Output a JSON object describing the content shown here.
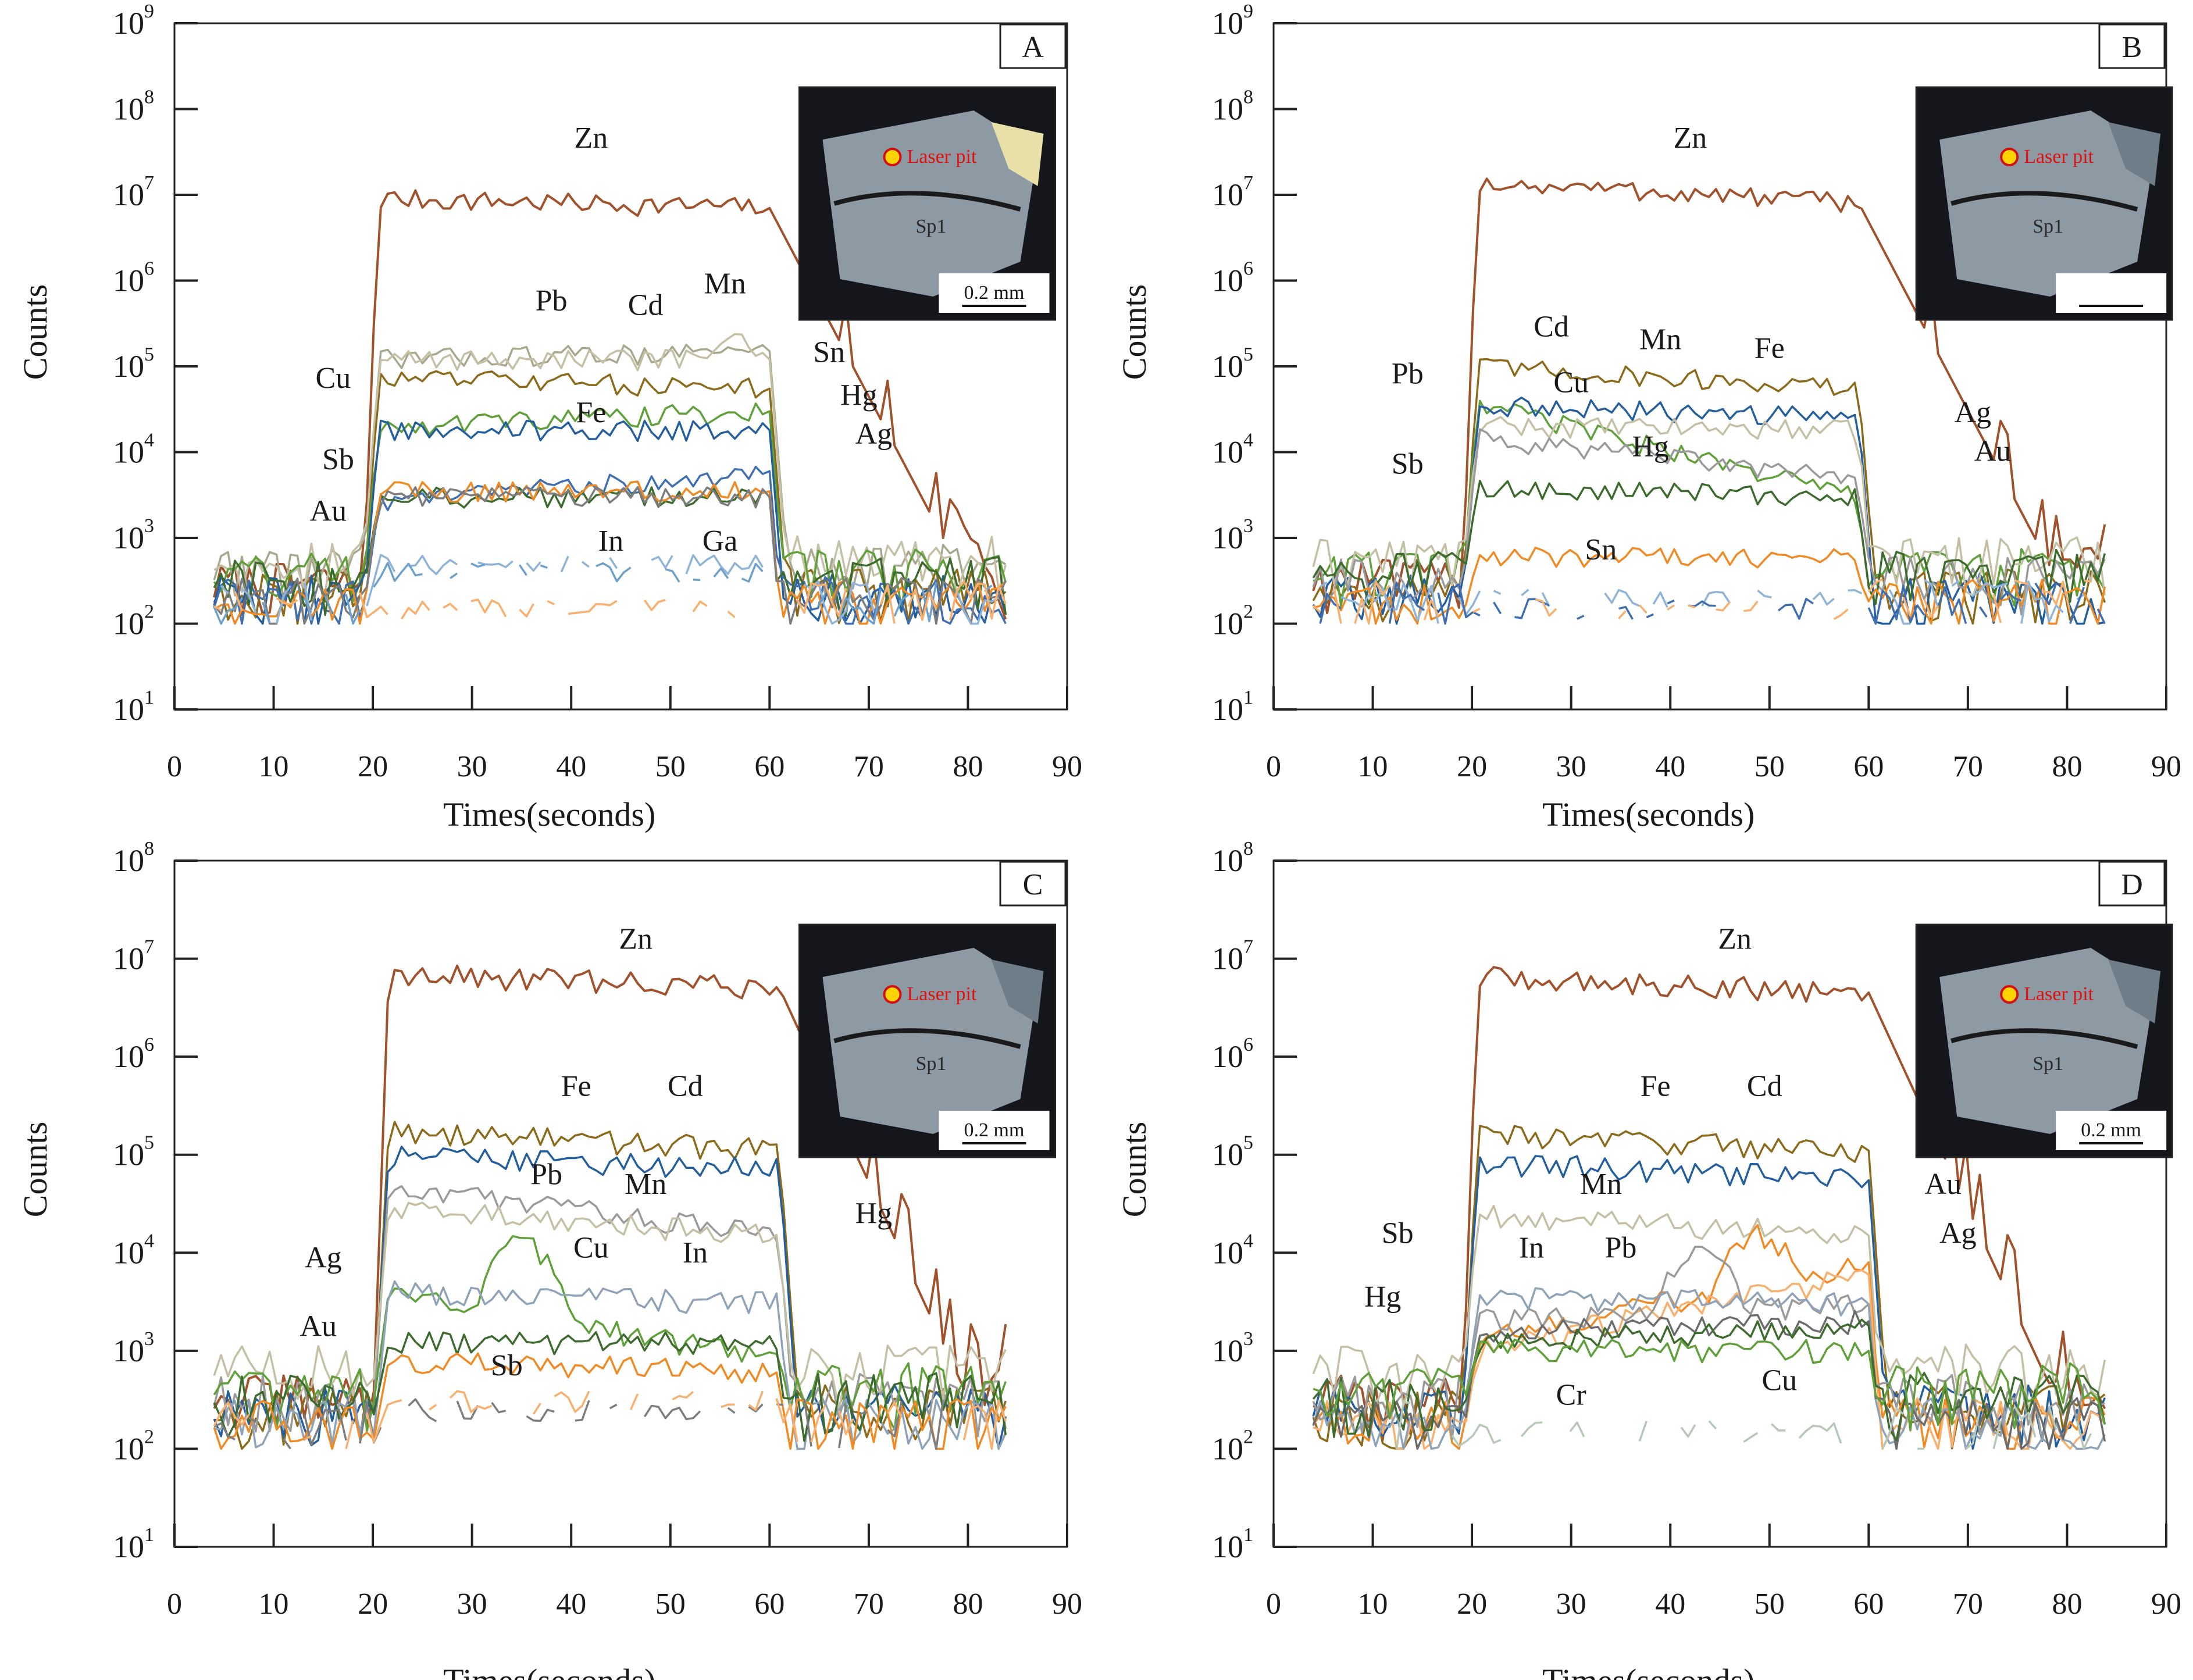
{
  "figure": {
    "y_label": "Counts",
    "x_label": "Times(seconds)"
  },
  "chart_data": [
    {
      "type": "line",
      "panel": "A",
      "xlabel": "Times(seconds)",
      "ylabel": "Counts",
      "y_scale": "log",
      "xlim": [
        0,
        90
      ],
      "x_ticks": [
        0,
        10,
        20,
        30,
        40,
        50,
        60,
        70,
        80,
        90
      ],
      "ylim_exp": [
        1,
        9
      ],
      "y_tick_exps": [
        1,
        2,
        3,
        4,
        5,
        6,
        7,
        8,
        9
      ],
      "signal": [
        19,
        60
      ],
      "series": [
        {
          "name": "Zn",
          "color": "#a0522d",
          "plateau": 9000000,
          "end": 7000000,
          "bg": 180,
          "tail": "slow"
        },
        {
          "name": "Pb",
          "color": "#a8a88e",
          "plateau": 120000,
          "end": 150000,
          "bg": 280,
          "tail": "fast"
        },
        {
          "name": "Cd",
          "color": "#8b6a1c",
          "plateau": 75000,
          "end": 55000,
          "bg": 150,
          "tail": "fast"
        },
        {
          "name": "Mn",
          "color": "#c4c0a6",
          "plateau": 120000,
          "end": 120000,
          "bg": 350,
          "tail": "fast",
          "bump": [
            56,
            200000
          ]
        },
        {
          "name": "Cu",
          "color": "#5fa03a",
          "plateau": 20000,
          "end": 30000,
          "bg": 250,
          "tail": "fast"
        },
        {
          "name": "Fe",
          "color": "#245e9c",
          "plateau": 18000,
          "end": 18000,
          "bg": 130,
          "tail": "fast"
        },
        {
          "name": "Sn",
          "color": "#3f6fb0",
          "plateau": 2500,
          "end": 6000,
          "bg": 120,
          "tail": "fast"
        },
        {
          "name": "Hg",
          "color": "#3d6b2e",
          "plateau": 3000,
          "end": 3000,
          "bg": 200,
          "tail": "fast"
        },
        {
          "name": "Ag",
          "color": "#f08a24",
          "plateau": 3500,
          "end": 3500,
          "bg": 110,
          "tail": "fast"
        },
        {
          "name": "Sb",
          "color": "#7d7d7d",
          "plateau": 3000,
          "end": 3000,
          "bg": 120,
          "tail": "fast"
        },
        {
          "name": "In",
          "color": "#8fb4d8",
          "plateau": 500,
          "end": 500,
          "bg": 110,
          "tail": "fast",
          "gappy": true
        },
        {
          "name": "Ga",
          "color": "#6ea0cc",
          "plateau": 400,
          "end": 400,
          "bg": 110,
          "tail": "fast",
          "gappy": true
        },
        {
          "name": "Au",
          "color": "#f7b070",
          "plateau": 150,
          "end": 150,
          "bg": 110,
          "tail": "fast",
          "gappy": true
        }
      ],
      "labels": [
        {
          "text": "Zn",
          "x": 42,
          "exp": 7.55
        },
        {
          "text": "Pb",
          "x": 38,
          "exp": 5.65
        },
        {
          "text": "Cd",
          "x": 47.5,
          "exp": 5.6
        },
        {
          "text": "Mn",
          "x": 55.5,
          "exp": 5.85
        },
        {
          "text": "Cu",
          "x": 16,
          "exp": 4.75
        },
        {
          "text": "Fe",
          "x": 42,
          "exp": 4.35
        },
        {
          "text": "Sn",
          "x": 66,
          "exp": 5.05
        },
        {
          "text": "Hg",
          "x": 69,
          "exp": 4.55
        },
        {
          "text": "Ag",
          "x": 70.5,
          "exp": 4.1
        },
        {
          "text": "Sb",
          "x": 16.5,
          "exp": 3.8
        },
        {
          "text": "Au",
          "x": 15.5,
          "exp": 3.2
        },
        {
          "text": "In",
          "x": 44,
          "exp": 2.85
        },
        {
          "text": "Ga",
          "x": 55,
          "exp": 2.85
        }
      ],
      "inset": {
        "label": "Sp1",
        "pit_label": "Laser pit",
        "scale": "0.2 mm"
      }
    },
    {
      "type": "line",
      "panel": "B",
      "xlabel": "Times(seconds)",
      "ylabel": "Counts",
      "y_scale": "log",
      "xlim": [
        0,
        90
      ],
      "x_ticks": [
        0,
        10,
        20,
        30,
        40,
        50,
        60,
        70,
        80,
        90
      ],
      "ylim_exp": [
        1,
        9
      ],
      "y_tick_exps": [
        1,
        2,
        3,
        4,
        5,
        6,
        7,
        8,
        9
      ],
      "signal": [
        19,
        59
      ],
      "series": [
        {
          "name": "Zn",
          "color": "#a0522d",
          "plateau": 14000000,
          "end": 8000000,
          "bg": 200,
          "tail": "slow"
        },
        {
          "name": "Cd",
          "color": "#8b6a1c",
          "plateau": 100000,
          "end": 55000,
          "bg": 150,
          "tail": "fast"
        },
        {
          "name": "Cu",
          "color": "#5fa03a",
          "plateau": 40000,
          "end": 3000,
          "bg": 250,
          "tail": "fast"
        },
        {
          "name": "Fe",
          "color": "#245e9c",
          "plateau": 35000,
          "end": 25000,
          "bg": 130,
          "tail": "fast"
        },
        {
          "name": "Mn",
          "color": "#c4c0a6",
          "plateau": 20000,
          "end": 18000,
          "bg": 350,
          "tail": "fast"
        },
        {
          "name": "Pb",
          "color": "#9a9a9a",
          "plateau": 15000,
          "end": 5000,
          "bg": 200,
          "tail": "fast"
        },
        {
          "name": "Hg",
          "color": "#3d6b2e",
          "plateau": 4000,
          "end": 3000,
          "bg": 250,
          "tail": "fast"
        },
        {
          "name": "Ag",
          "color": "#f08a24",
          "plateau": 600,
          "end": 600,
          "bg": 110,
          "tail": "fast"
        },
        {
          "name": "Sb",
          "color": "#8fb4d8",
          "plateau": 200,
          "end": 200,
          "bg": 110,
          "tail": "fast",
          "gappy": true
        },
        {
          "name": "Sn",
          "color": "#3f6fb0",
          "plateau": 150,
          "end": 150,
          "bg": 110,
          "tail": "fast",
          "gappy": true
        },
        {
          "name": "Au",
          "color": "#f7b070",
          "plateau": 150,
          "end": 150,
          "bg": 110,
          "tail": "fast",
          "gappy": true
        }
      ],
      "labels": [
        {
          "text": "Zn",
          "x": 42,
          "exp": 7.55
        },
        {
          "text": "Cd",
          "x": 28,
          "exp": 5.35
        },
        {
          "text": "Mn",
          "x": 39,
          "exp": 5.2
        },
        {
          "text": "Fe",
          "x": 50,
          "exp": 5.1
        },
        {
          "text": "Pb",
          "x": 13.5,
          "exp": 4.8
        },
        {
          "text": "Cu",
          "x": 30,
          "exp": 4.7
        },
        {
          "text": "Hg",
          "x": 38,
          "exp": 3.95
        },
        {
          "text": "Sb",
          "x": 13.5,
          "exp": 3.75
        },
        {
          "text": "Sn",
          "x": 33,
          "exp": 2.75
        },
        {
          "text": "Ag",
          "x": 70.5,
          "exp": 4.35
        },
        {
          "text": "Au",
          "x": 72.5,
          "exp": 3.9
        }
      ],
      "inset": {
        "label": "Sp1",
        "pit_label": "Laser pit",
        "scale": ""
      }
    },
    {
      "type": "line",
      "panel": "C",
      "xlabel": "Times(seconds)",
      "ylabel": "Counts",
      "y_scale": "log",
      "xlim": [
        0,
        90
      ],
      "x_ticks": [
        0,
        10,
        20,
        30,
        40,
        50,
        60,
        70,
        80,
        90
      ],
      "ylim_exp": [
        1,
        8
      ],
      "y_tick_exps": [
        1,
        2,
        3,
        4,
        5,
        6,
        7,
        8
      ],
      "signal": [
        20,
        61
      ],
      "series": [
        {
          "name": "Zn",
          "color": "#a0522d",
          "plateau": 7000000,
          "end": 5000000,
          "bg": 200,
          "tail": "slow"
        },
        {
          "name": "Cd",
          "color": "#8b6a1c",
          "plateau": 180000,
          "end": 110000,
          "bg": 150,
          "tail": "fast"
        },
        {
          "name": "Fe",
          "color": "#245e9c",
          "plateau": 100000,
          "end": 70000,
          "bg": 150,
          "tail": "fast"
        },
        {
          "name": "Pb",
          "color": "#9a9a9a",
          "plateau": 50000,
          "end": 15000,
          "bg": 200,
          "tail": "fast"
        },
        {
          "name": "Mn",
          "color": "#c4c0a6",
          "plateau": 28000,
          "end": 15000,
          "bg": 400,
          "tail": "fast"
        },
        {
          "name": "Cu",
          "color": "#5fa03a",
          "plateau": 4000,
          "end": 800,
          "bg": 250,
          "tail": "fast",
          "bump": [
            35,
            12000
          ]
        },
        {
          "name": "In",
          "color": "#8fa3b8",
          "plateau": 4000,
          "end": 3000,
          "bg": 110,
          "tail": "fast"
        },
        {
          "name": "Hg",
          "color": "#3d6b2e",
          "plateau": 1200,
          "end": 1200,
          "bg": 200,
          "tail": "fast"
        },
        {
          "name": "Ag",
          "color": "#f08a24",
          "plateau": 800,
          "end": 600,
          "bg": 110,
          "tail": "fast"
        },
        {
          "name": "Sb",
          "color": "#7d7d7d",
          "plateau": 250,
          "end": 250,
          "bg": 110,
          "tail": "fast",
          "gappy": true
        },
        {
          "name": "Au",
          "color": "#f7b070",
          "plateau": 300,
          "end": 300,
          "bg": 110,
          "tail": "fast",
          "gappy": true
        }
      ],
      "labels": [
        {
          "text": "Zn",
          "x": 46.5,
          "exp": 7.1
        },
        {
          "text": "Fe",
          "x": 40.5,
          "exp": 5.6
        },
        {
          "text": "Cd",
          "x": 51.5,
          "exp": 5.6
        },
        {
          "text": "Pb",
          "x": 37.5,
          "exp": 4.7
        },
        {
          "text": "Mn",
          "x": 47.5,
          "exp": 4.6
        },
        {
          "text": "Cu",
          "x": 42,
          "exp": 3.95
        },
        {
          "text": "In",
          "x": 52.5,
          "exp": 3.9
        },
        {
          "text": "Hg",
          "x": 70.5,
          "exp": 4.3
        },
        {
          "text": "Ag",
          "x": 15,
          "exp": 3.85
        },
        {
          "text": "Au",
          "x": 14.5,
          "exp": 3.15
        },
        {
          "text": "Sb",
          "x": 33.5,
          "exp": 2.75
        }
      ],
      "inset": {
        "label": "Sp1",
        "pit_label": "Laser pit",
        "scale": "0.2 mm"
      }
    },
    {
      "type": "line",
      "panel": "D",
      "xlabel": "Times(seconds)",
      "ylabel": "Counts",
      "y_scale": "log",
      "xlim": [
        0,
        90
      ],
      "x_ticks": [
        0,
        10,
        20,
        30,
        40,
        50,
        60,
        70,
        80,
        90
      ],
      "ylim_exp": [
        1,
        8
      ],
      "y_tick_exps": [
        1,
        2,
        3,
        4,
        5,
        6,
        7,
        8
      ],
      "signal": [
        19,
        60
      ],
      "series": [
        {
          "name": "Zn",
          "color": "#a0522d",
          "plateau": 6500000,
          "end": 4500000,
          "bg": 200,
          "tail": "slow"
        },
        {
          "name": "Cd",
          "color": "#8b6a1c",
          "plateau": 160000,
          "end": 110000,
          "bg": 150,
          "tail": "fast"
        },
        {
          "name": "Fe",
          "color": "#245e9c",
          "plateau": 85000,
          "end": 55000,
          "bg": 150,
          "tail": "fast"
        },
        {
          "name": "Mn",
          "color": "#c4c0a6",
          "plateau": 25000,
          "end": 15000,
          "bg": 400,
          "tail": "fast"
        },
        {
          "name": "Au",
          "color": "#f08a24",
          "plateau": 1200,
          "end": 8000,
          "bg": 120,
          "tail": "fast",
          "bump": [
            49,
            15000
          ]
        },
        {
          "name": "Ag",
          "color": "#f7b070",
          "plateau": 1000,
          "end": 6000,
          "bg": 110,
          "tail": "fast"
        },
        {
          "name": "Pb",
          "color": "#9a9a9a",
          "plateau": 2000,
          "end": 3000,
          "bg": 200,
          "tail": "fast",
          "bump": [
            43,
            10000
          ]
        },
        {
          "name": "In",
          "color": "#8fa3b8",
          "plateau": 3500,
          "end": 3000,
          "bg": 110,
          "tail": "fast"
        },
        {
          "name": "Sb",
          "color": "#6b6b6b",
          "plateau": 1500,
          "end": 2000,
          "bg": 110,
          "tail": "fast"
        },
        {
          "name": "Hg",
          "color": "#3d6b2e",
          "plateau": 1200,
          "end": 1800,
          "bg": 200,
          "tail": "fast"
        },
        {
          "name": "Cu",
          "color": "#5fa03a",
          "plateau": 1000,
          "end": 1000,
          "bg": 250,
          "tail": "fast"
        },
        {
          "name": "Cr",
          "color": "#b8c8b8",
          "plateau": 150,
          "end": 150,
          "bg": 110,
          "tail": "fast",
          "gappy": true
        }
      ],
      "labels": [
        {
          "text": "Zn",
          "x": 46.5,
          "exp": 7.1
        },
        {
          "text": "Fe",
          "x": 38.5,
          "exp": 5.6
        },
        {
          "text": "Cd",
          "x": 49.5,
          "exp": 5.6
        },
        {
          "text": "Mn",
          "x": 33,
          "exp": 4.6
        },
        {
          "text": "Au",
          "x": 67.5,
          "exp": 4.6
        },
        {
          "text": "Ag",
          "x": 69,
          "exp": 4.1
        },
        {
          "text": "Sb",
          "x": 12.5,
          "exp": 4.1
        },
        {
          "text": "In",
          "x": 26,
          "exp": 3.95
        },
        {
          "text": "Pb",
          "x": 35,
          "exp": 3.95
        },
        {
          "text": "Hg",
          "x": 11,
          "exp": 3.45
        },
        {
          "text": "Cu",
          "x": 51,
          "exp": 2.6
        },
        {
          "text": "Cr",
          "x": 30,
          "exp": 2.45
        }
      ],
      "inset": {
        "label": "Sp1",
        "pit_label": "Laser pit",
        "scale": "0.2 mm"
      }
    }
  ]
}
